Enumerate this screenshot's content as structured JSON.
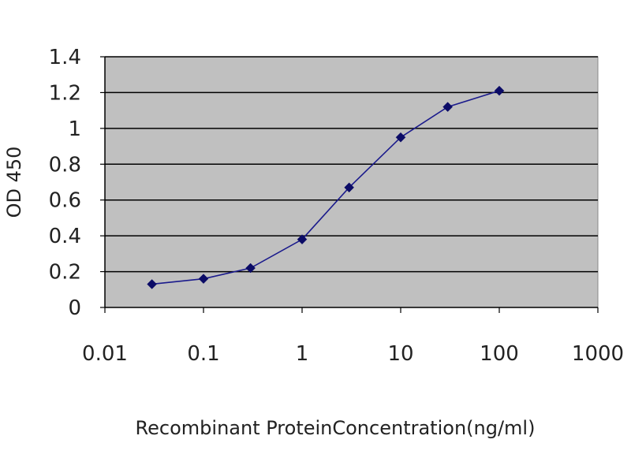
{
  "chart_data": {
    "type": "line",
    "title": "",
    "xlabel": "Recombinant ProteinConcentration(ng/ml)",
    "ylabel": "OD 450",
    "xscale": "log",
    "xlim": [
      0.01,
      1000
    ],
    "ylim": [
      0,
      1.4
    ],
    "x_ticks": [
      "0.01",
      "0.1",
      "1",
      "10",
      "100",
      "1000"
    ],
    "y_ticks": [
      "0",
      "0.2",
      "0.4",
      "0.6",
      "0.8",
      "1",
      "1.2",
      "1.4"
    ],
    "grid": "horizontal",
    "legend": "none",
    "series": [
      {
        "x": [
          0.03,
          0.1,
          0.3,
          1,
          3,
          10,
          30,
          100
        ],
        "y": [
          0.13,
          0.16,
          0.22,
          0.38,
          0.67,
          0.95,
          1.12,
          1.21
        ]
      }
    ],
    "colors": {
      "plot_background": "#c0c0c0",
      "gridline": "#000000",
      "series": "#1a1a8c",
      "marker": "#0b0b66"
    }
  }
}
